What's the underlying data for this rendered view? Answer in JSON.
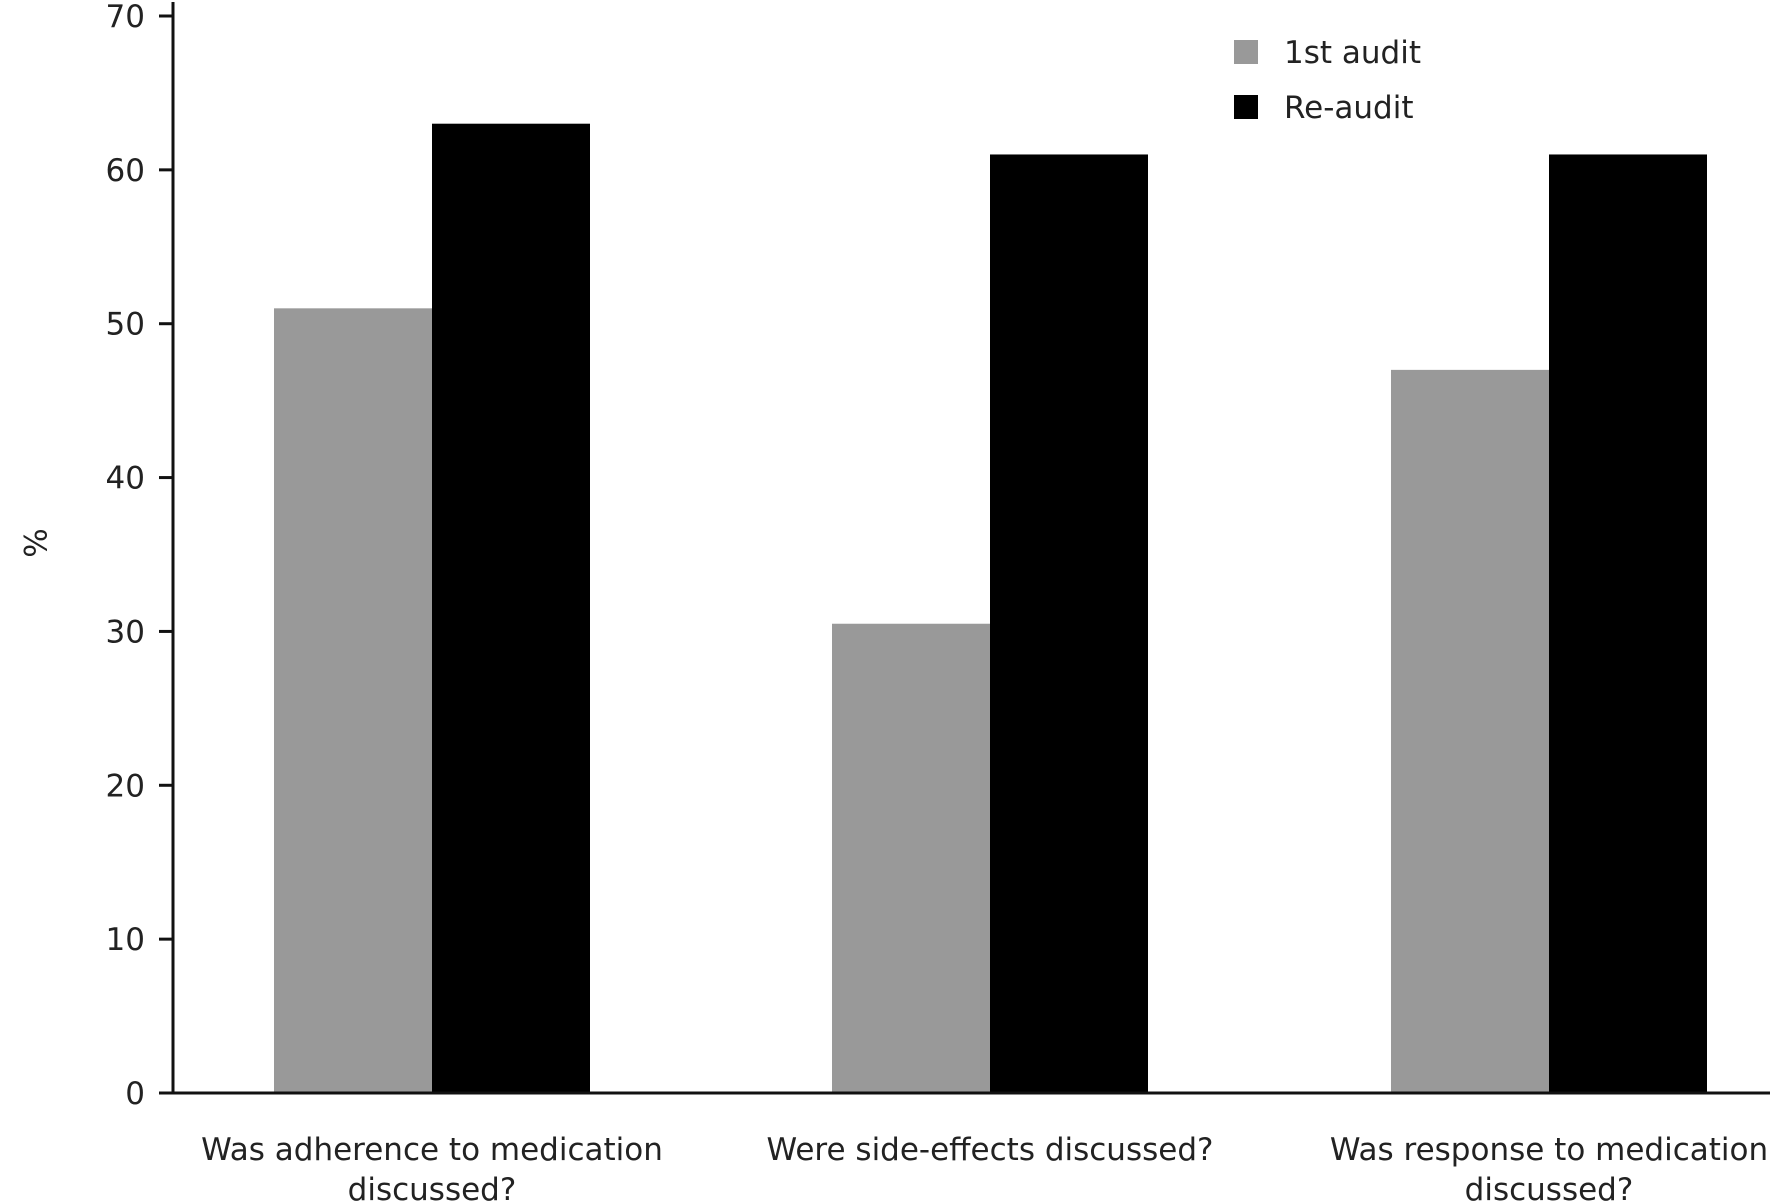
{
  "chart_data": {
    "type": "bar",
    "title": "",
    "xlabel": "",
    "ylabel": "%",
    "ylim": [
      0,
      70
    ],
    "yticks": [
      0,
      10,
      20,
      30,
      40,
      50,
      60,
      70
    ],
    "grid": false,
    "legend_position": "top-right",
    "categories": [
      [
        "Was adherence to medication",
        "discussed?"
      ],
      [
        "Were side-effects discussed?"
      ],
      [
        "Was response to medication",
        "discussed?"
      ]
    ],
    "series": [
      {
        "name": "1st audit",
        "color": "#999999",
        "values": [
          51,
          30.5,
          47
        ]
      },
      {
        "name": "Re-audit",
        "color": "#000000",
        "values": [
          63,
          61,
          61
        ]
      }
    ]
  }
}
